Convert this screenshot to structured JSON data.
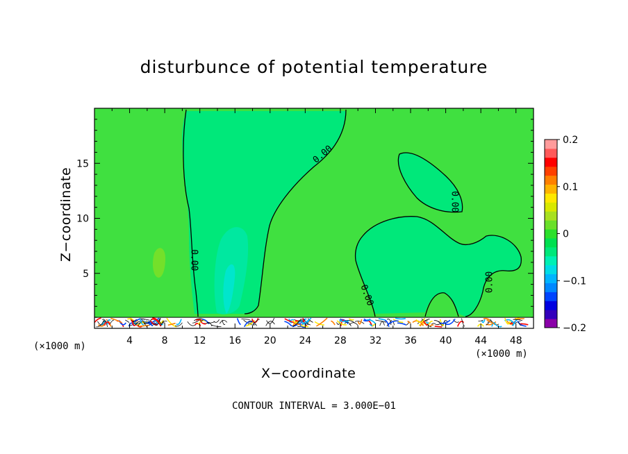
{
  "chart_data": {
    "type": "heatmap",
    "title": "disturbunce of potential temperature",
    "xlabel": "X−coordinate",
    "ylabel": "Z−coordinate",
    "x_unit_label": "(×1000 m)",
    "footer": "CONTOUR INTERVAL = 3.000E−01",
    "xlim": [
      0,
      50
    ],
    "ylim": [
      0,
      20
    ],
    "x_ticks": [
      4,
      8,
      12,
      16,
      20,
      24,
      28,
      32,
      36,
      40,
      44,
      48
    ],
    "x_tick_labels": [
      "4",
      "8",
      "12",
      "16",
      "20",
      "24",
      "28",
      "32",
      "36",
      "40",
      "44",
      "48"
    ],
    "y_ticks": [
      5,
      10,
      15
    ],
    "y_tick_labels": [
      "5",
      "10",
      "15"
    ],
    "contour_labels": [
      {
        "text": "0.00",
        "x": 11.3,
        "y": 6.2
      },
      {
        "text": "0.00",
        "x": 26.0,
        "y": 15.8
      },
      {
        "text": "0.00",
        "x": 41.0,
        "y": 11.5
      },
      {
        "text": "0.00",
        "x": 31.0,
        "y": 3.0
      },
      {
        "text": "0.00",
        "x": 45.0,
        "y": 4.2
      }
    ],
    "colorbar": {
      "min": -0.2,
      "max": 0.2,
      "tick_values": [
        0.2,
        0.1,
        0,
        -0.1,
        -0.2
      ],
      "tick_labels": [
        "0.2",
        "0.1",
        "0",
        "−0.1",
        "−0.2"
      ],
      "colors": [
        "#8a00a8",
        "#3300bb",
        "#0000e0",
        "#0044ff",
        "#0088ff",
        "#00b4ff",
        "#00dce6",
        "#00f0b4",
        "#00e87a",
        "#00e050",
        "#2be02b",
        "#6ae02a",
        "#a8e020",
        "#d8e800",
        "#ffe800",
        "#ffb400",
        "#ff8000",
        "#ff4000",
        "#ff0000",
        "#ff5a5a",
        "#ff9b9b"
      ]
    },
    "field_color_background": "#40e040",
    "field_color_negative": "#00e87a"
  }
}
